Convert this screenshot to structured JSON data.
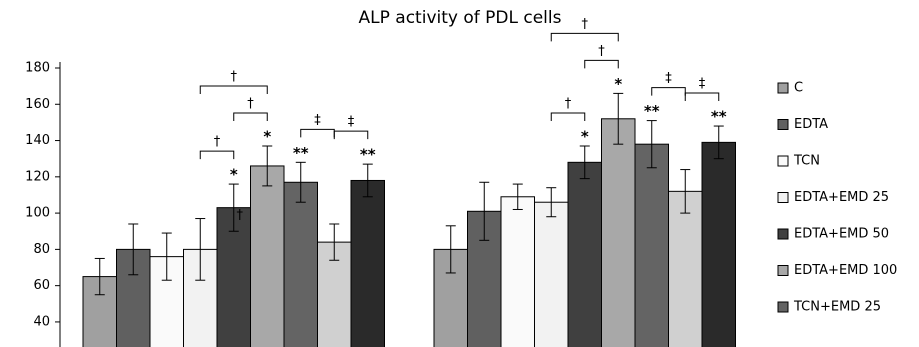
{
  "chart_data": {
    "type": "bar",
    "title": "ALP activity of  PDL cells",
    "categories": [
      null,
      null
    ],
    "series": [
      {
        "name": "C",
        "color": "#a0a0a0",
        "values": [
          65,
          80
        ],
        "errors": [
          10,
          13
        ],
        "marks": [
          null,
          null
        ]
      },
      {
        "name": "EDTA",
        "color": "#606060",
        "values": [
          80,
          101
        ],
        "errors": [
          14,
          16
        ],
        "marks": [
          null,
          null
        ]
      },
      {
        "name": "TCN",
        "color": "#fafafa",
        "values": [
          76,
          109
        ],
        "errors": [
          13,
          7
        ],
        "marks": [
          null,
          null
        ]
      },
      {
        "name": "EDTA+EMD 25",
        "color": "#f2f2f2",
        "values": [
          80,
          106
        ],
        "errors": [
          17,
          8
        ],
        "marks": [
          null,
          null
        ]
      },
      {
        "name": "EDTA+EMD 50",
        "color": "#404040",
        "values": [
          103,
          128
        ],
        "errors": [
          13,
          9
        ],
        "marks": [
          "*",
          "*"
        ],
        "inner_marks": [
          "†",
          null
        ]
      },
      {
        "name": "EDTA+EMD 100",
        "color": "#a8a8a8",
        "values": [
          126,
          152
        ],
        "errors": [
          11,
          14
        ],
        "marks": [
          "*",
          "*"
        ]
      },
      {
        "name": "TCN+EMD 25",
        "color": "#646464",
        "values": [
          117,
          138
        ],
        "errors": [
          11,
          13
        ],
        "marks": [
          "**",
          "**"
        ]
      },
      {
        "color": "#d0d0d0",
        "values": [
          84,
          112
        ],
        "errors": [
          10,
          12
        ],
        "marks": [
          null,
          null
        ]
      },
      {
        "color": "#2a2a2a",
        "values": [
          118,
          139
        ],
        "errors": [
          9,
          9
        ],
        "marks": [
          "**",
          "**"
        ]
      }
    ],
    "brackets": [
      {
        "group": 0,
        "from": 3,
        "to": 4,
        "label": "†"
      },
      {
        "group": 0,
        "from": 4,
        "to": 5,
        "label": "†"
      },
      {
        "group": 0,
        "from": 3,
        "to": 5,
        "label": "†"
      },
      {
        "group": 0,
        "from": 6,
        "to": 7,
        "label": "‡"
      },
      {
        "group": 0,
        "from": 7,
        "to": 8,
        "label": "‡"
      },
      {
        "group": 1,
        "from": 3,
        "to": 4,
        "label": "†"
      },
      {
        "group": 1,
        "from": 4,
        "to": 5,
        "label": "†"
      },
      {
        "group": 1,
        "from": 3,
        "to": 5,
        "label": "†"
      },
      {
        "group": 1,
        "from": 6,
        "to": 7,
        "label": "‡"
      },
      {
        "group": 1,
        "from": 7,
        "to": 8,
        "label": "‡"
      }
    ],
    "ylim": [
      35,
      180
    ],
    "yticks": [
      40,
      60,
      80,
      100,
      120,
      140,
      160,
      180
    ]
  }
}
